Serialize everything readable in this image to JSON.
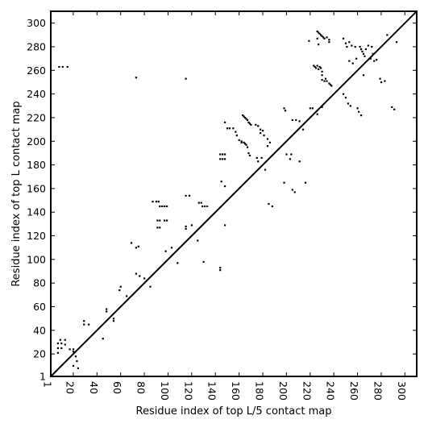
{
  "chart_data": {
    "type": "scatter",
    "title": "",
    "xlabel": "Residue index of top L/5 contact map",
    "ylabel": "Residue index of top L contact map",
    "xlim": [
      1,
      310
    ],
    "ylim": [
      1,
      310
    ],
    "x_ticks": [
      1,
      20,
      40,
      60,
      80,
      100,
      120,
      140,
      160,
      180,
      200,
      220,
      240,
      260,
      280,
      300
    ],
    "y_ticks": [
      1,
      20,
      40,
      60,
      80,
      100,
      120,
      140,
      160,
      180,
      200,
      220,
      240,
      260,
      280,
      300
    ],
    "grid": false,
    "diagonal_line": true,
    "marker_color": "#000000",
    "series": [
      {
        "points": [
          [
            8,
            263
          ],
          [
            11,
            263
          ],
          [
            15,
            263
          ],
          [
            73,
            254
          ],
          [
            115,
            253
          ],
          [
            7,
            29
          ],
          [
            7,
            25
          ],
          [
            7,
            21
          ],
          [
            9,
            32
          ],
          [
            10,
            29
          ],
          [
            10,
            25
          ],
          [
            13,
            32
          ],
          [
            13,
            28
          ],
          [
            17,
            24
          ],
          [
            20,
            24
          ],
          [
            20,
            22
          ],
          [
            22,
            18
          ],
          [
            23,
            14
          ],
          [
            24,
            8
          ],
          [
            20,
            10
          ],
          [
            29,
            48
          ],
          [
            29,
            45
          ],
          [
            33,
            45
          ],
          [
            45,
            33
          ],
          [
            48,
            56
          ],
          [
            48,
            58
          ],
          [
            54,
            48
          ],
          [
            54,
            50
          ],
          [
            59,
            74
          ],
          [
            60,
            77
          ],
          [
            65,
            69
          ],
          [
            69,
            114
          ],
          [
            73,
            110
          ],
          [
            75,
            111
          ],
          [
            73,
            88
          ],
          [
            76,
            86
          ],
          [
            80,
            84
          ],
          [
            85,
            77
          ],
          [
            87,
            149
          ],
          [
            90,
            149
          ],
          [
            92,
            149
          ],
          [
            93,
            145
          ],
          [
            95,
            145
          ],
          [
            97,
            145
          ],
          [
            99,
            145
          ],
          [
            91,
            133
          ],
          [
            93,
            133
          ],
          [
            97,
            133
          ],
          [
            99,
            133
          ],
          [
            91,
            127
          ],
          [
            93,
            127
          ],
          [
            98,
            107
          ],
          [
            103,
            110
          ],
          [
            108,
            97
          ],
          [
            115,
            154
          ],
          [
            118,
            154
          ],
          [
            115,
            128
          ],
          [
            115,
            126
          ],
          [
            120,
            129
          ],
          [
            125,
            116
          ],
          [
            126,
            148
          ],
          [
            128,
            148
          ],
          [
            129,
            145
          ],
          [
            131,
            145
          ],
          [
            133,
            145
          ],
          [
            130,
            98
          ],
          [
            144,
            189
          ],
          [
            146,
            189
          ],
          [
            148,
            189
          ],
          [
            144,
            185
          ],
          [
            146,
            185
          ],
          [
            148,
            185
          ],
          [
            145,
            166
          ],
          [
            148,
            162
          ],
          [
            144,
            93
          ],
          [
            144,
            91
          ],
          [
            148,
            129
          ],
          [
            148,
            216
          ],
          [
            150,
            211
          ],
          [
            152,
            211
          ],
          [
            155,
            211
          ],
          [
            157,
            208
          ],
          [
            158,
            205
          ],
          [
            160,
            201
          ],
          [
            162,
            199
          ],
          [
            163,
            222
          ],
          [
            164,
            221
          ],
          [
            165,
            220
          ],
          [
            166,
            219
          ],
          [
            167,
            218
          ],
          [
            168,
            216
          ],
          [
            169,
            215
          ],
          [
            170,
            214
          ],
          [
            162,
            200
          ],
          [
            164,
            199
          ],
          [
            165,
            198
          ],
          [
            166,
            197
          ],
          [
            167,
            195
          ],
          [
            168,
            190
          ],
          [
            169,
            188
          ],
          [
            174,
            214
          ],
          [
            176,
            213
          ],
          [
            178,
            210
          ],
          [
            180,
            209
          ],
          [
            178,
            207
          ],
          [
            181,
            205
          ],
          [
            184,
            202
          ],
          [
            186,
            199
          ],
          [
            184,
            196
          ],
          [
            175,
            186
          ],
          [
            176,
            183
          ],
          [
            179,
            186
          ],
          [
            182,
            176
          ],
          [
            185,
            147
          ],
          [
            188,
            145
          ],
          [
            198,
            228
          ],
          [
            199,
            226
          ],
          [
            198,
            165
          ],
          [
            200,
            189
          ],
          [
            203,
            185
          ],
          [
            204,
            189
          ],
          [
            205,
            159
          ],
          [
            207,
            157
          ],
          [
            205,
            218
          ],
          [
            208,
            218
          ],
          [
            211,
            217
          ],
          [
            211,
            183
          ],
          [
            214,
            210
          ],
          [
            216,
            165
          ],
          [
            219,
            285
          ],
          [
            220,
            228
          ],
          [
            222,
            228
          ],
          [
            223,
            264
          ],
          [
            224,
            263
          ],
          [
            225,
            262
          ],
          [
            226,
            264
          ],
          [
            227,
            261
          ],
          [
            228,
            263
          ],
          [
            229,
            262
          ],
          [
            230,
            259
          ],
          [
            230,
            256
          ],
          [
            230,
            252
          ],
          [
            232,
            251
          ],
          [
            233,
            253
          ],
          [
            234,
            251
          ],
          [
            236,
            249
          ],
          [
            237,
            248
          ],
          [
            238,
            247
          ],
          [
            226,
            223
          ],
          [
            230,
            229
          ],
          [
            226,
            293
          ],
          [
            227,
            292
          ],
          [
            228,
            291
          ],
          [
            229,
            290
          ],
          [
            230,
            289
          ],
          [
            231,
            288
          ],
          [
            232,
            287
          ],
          [
            234,
            288
          ],
          [
            236,
            286
          ],
          [
            236,
            284
          ],
          [
            226,
            287
          ],
          [
            227,
            282
          ],
          [
            248,
            240
          ],
          [
            250,
            237
          ],
          [
            252,
            232
          ],
          [
            254,
            230
          ],
          [
            260,
            228
          ],
          [
            261,
            225
          ],
          [
            263,
            222
          ],
          [
            248,
            287
          ],
          [
            250,
            283
          ],
          [
            251,
            280
          ],
          [
            253,
            284
          ],
          [
            255,
            281
          ],
          [
            258,
            280
          ],
          [
            253,
            268
          ],
          [
            256,
            266
          ],
          [
            259,
            270
          ],
          [
            262,
            280
          ],
          [
            263,
            278
          ],
          [
            264,
            276
          ],
          [
            265,
            274
          ],
          [
            266,
            272
          ],
          [
            267,
            278
          ],
          [
            269,
            281
          ],
          [
            272,
            280
          ],
          [
            273,
            274
          ],
          [
            274,
            268
          ],
          [
            276,
            269
          ],
          [
            265,
            256
          ],
          [
            271,
            270
          ],
          [
            279,
            253
          ],
          [
            280,
            250
          ],
          [
            283,
            251
          ],
          [
            285,
            290
          ],
          [
            289,
            229
          ],
          [
            291,
            227
          ],
          [
            293,
            284
          ]
        ]
      }
    ]
  }
}
